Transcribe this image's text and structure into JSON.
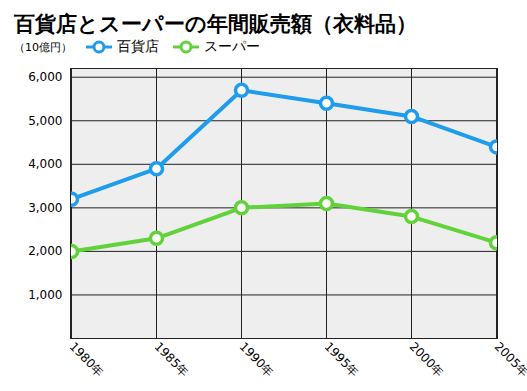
{
  "chart_data": {
    "type": "line",
    "title": "百貨店とスーパーの年間販売額（衣料品）",
    "y_label": "（10億円）",
    "categories": [
      "1980年",
      "1985年",
      "1990年",
      "1995年",
      "2000年",
      "2005年"
    ],
    "series": [
      {
        "name": "百貨店",
        "color": "#1f9ceb",
        "values": [
          3200,
          3900,
          5700,
          5400,
          5100,
          4400
        ]
      },
      {
        "name": "スーパー",
        "color": "#62d23a",
        "values": [
          2000,
          2300,
          3000,
          3100,
          2800,
          2200
        ]
      }
    ],
    "ylim": [
      0,
      6200
    ],
    "yticks": [
      {
        "value": 1000,
        "label": "1,000"
      },
      {
        "value": 2000,
        "label": "2,000"
      },
      {
        "value": 3000,
        "label": "3,000"
      },
      {
        "value": 4000,
        "label": "4,000"
      },
      {
        "value": 5000,
        "label": "5,000"
      },
      {
        "value": 6000,
        "label": "6,000"
      }
    ],
    "grid": true,
    "legend": "top-left",
    "marker": "circle"
  }
}
